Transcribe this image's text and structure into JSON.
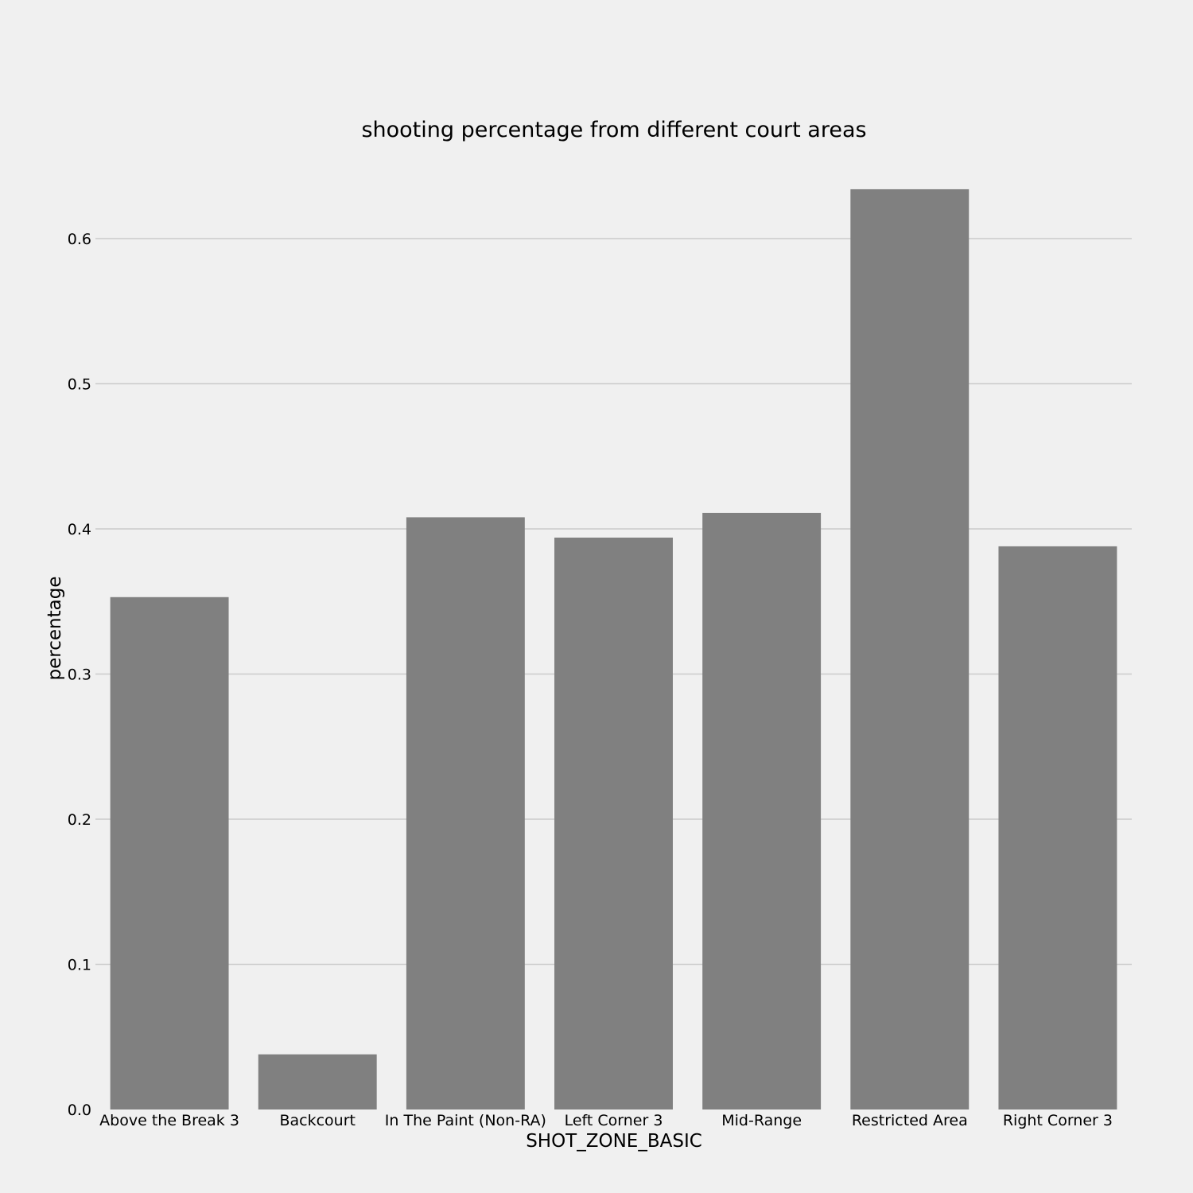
{
  "chart_data": {
    "type": "bar",
    "title": "shooting percentage from different court areas",
    "xlabel": "SHOT_ZONE_BASIC",
    "ylabel": "percentage",
    "categories": [
      "Above the Break 3",
      "Backcourt",
      "In The Paint (Non-RA)",
      "Left Corner 3",
      "Mid-Range",
      "Restricted Area",
      "Right Corner 3"
    ],
    "values": [
      0.353,
      0.038,
      0.408,
      0.394,
      0.411,
      0.634,
      0.388
    ],
    "ylim": [
      0,
      0.65
    ],
    "yticks": [
      0.0,
      0.1,
      0.2,
      0.3,
      0.4,
      0.5,
      0.6
    ],
    "ytick_labels": [
      "0.0",
      "0.1",
      "0.2",
      "0.3",
      "0.4",
      "0.5",
      "0.6"
    ],
    "grid": "horizontal",
    "bar_color": "#808080",
    "grid_color": "#cbcbcb",
    "background_color": "#f0f0f0"
  }
}
